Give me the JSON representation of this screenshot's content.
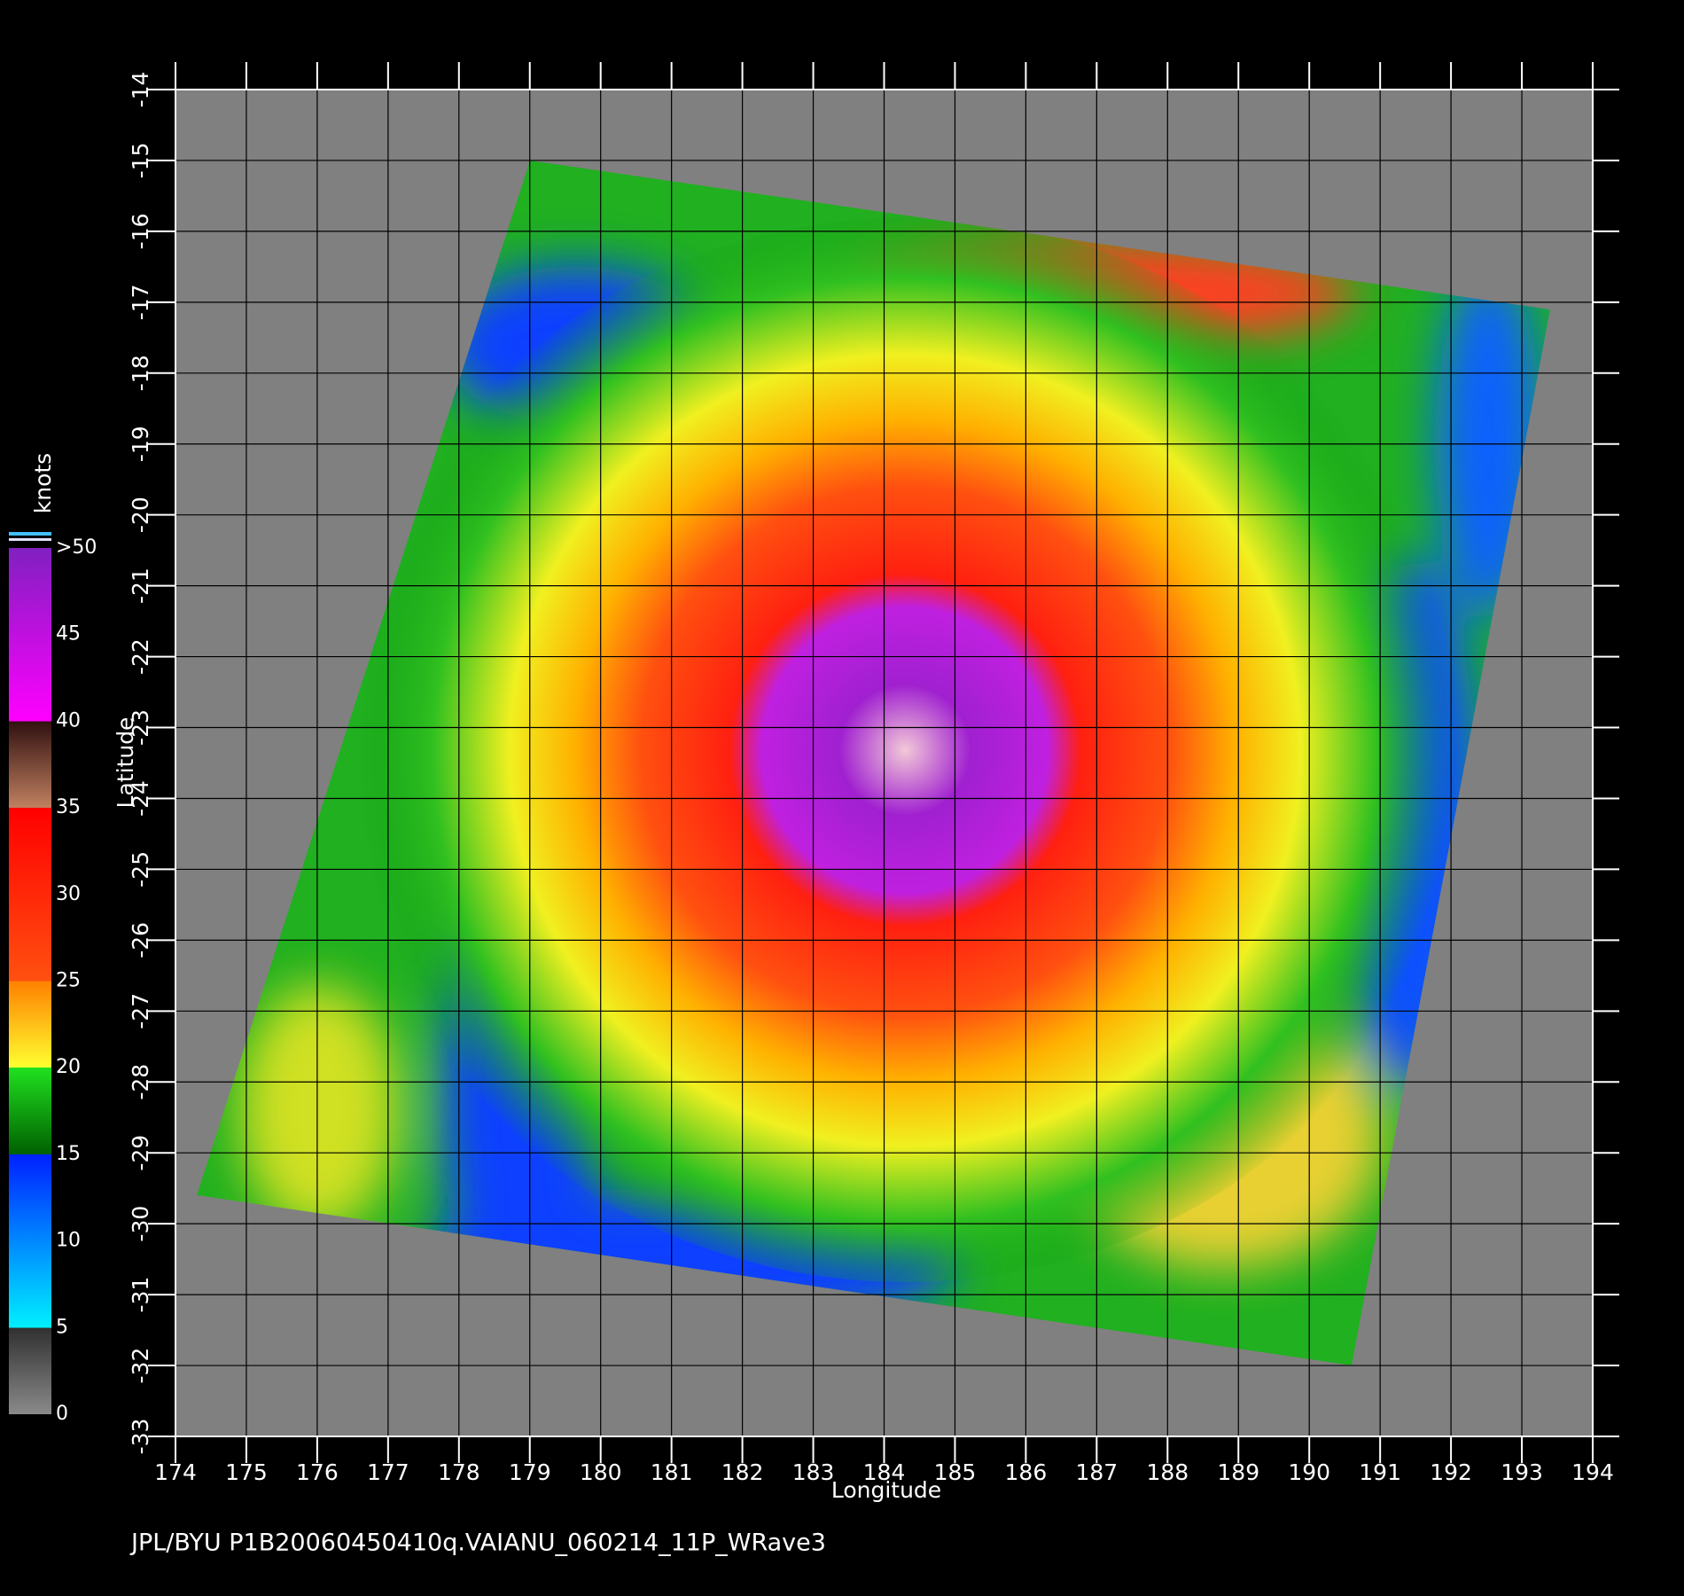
{
  "chart_data": {
    "type": "map",
    "xlabel": "Longitude",
    "ylabel": "Latitude",
    "xlim": [
      174,
      194
    ],
    "ylim": [
      -33,
      -14
    ],
    "xticks": [
      174,
      175,
      176,
      177,
      178,
      179,
      180,
      181,
      182,
      183,
      184,
      185,
      186,
      187,
      188,
      189,
      190,
      191,
      192,
      193,
      194
    ],
    "yticks": [
      -14,
      -15,
      -16,
      -17,
      -18,
      -19,
      -20,
      -21,
      -22,
      -23,
      -24,
      -25,
      -26,
      -27,
      -28,
      -29,
      -30,
      -31,
      -32,
      -33
    ],
    "grid": true,
    "colorbar": {
      "label": "knots",
      "clim": [
        0,
        50
      ],
      "ticks": [
        0,
        5,
        10,
        15,
        20,
        25,
        30,
        35,
        40,
        45,
        {
          "value": 50,
          "label": ">50"
        }
      ]
    },
    "footer": "JPL/BYU  P1B20060450410q.VAIANU_060214_11P_WRave3"
  }
}
